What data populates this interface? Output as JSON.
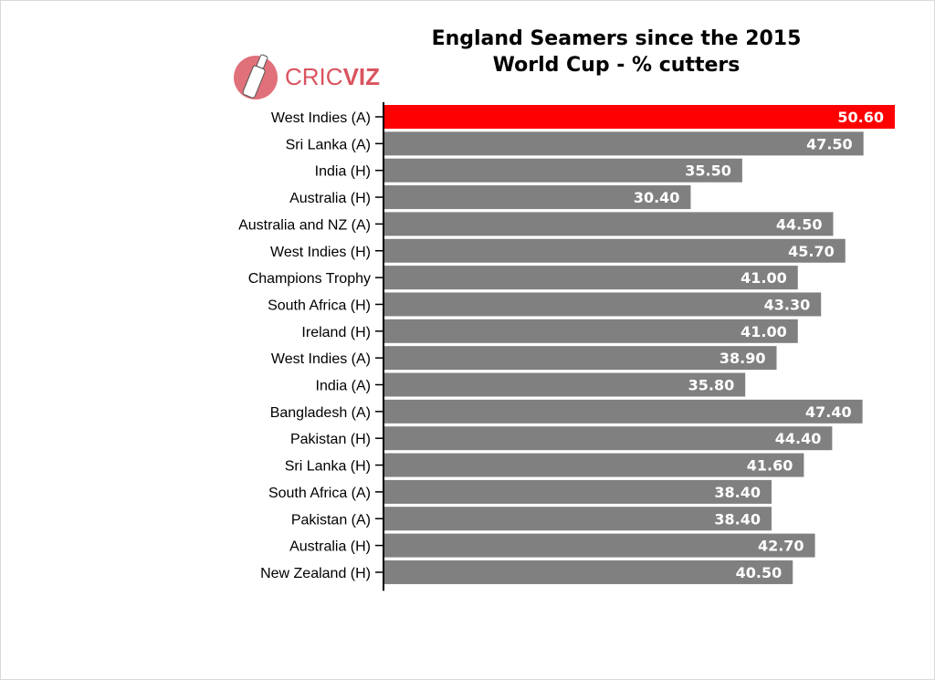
{
  "chart_data": {
    "type": "bar",
    "orientation": "horizontal",
    "title_line1": "England Seamers since the 2015",
    "title_line2": "World Cup - % cutters",
    "categories": [
      "West Indies (A)",
      "Sri Lanka (A)",
      "India (H)",
      "Australia (H)",
      "Australia and NZ (A)",
      "West Indies (H)",
      "Champions Trophy",
      "South Africa (H)",
      "Ireland (H)",
      "West Indies (A)",
      "India (A)",
      "Bangladesh (A)",
      "Pakistan (H)",
      "Sri Lanka (H)",
      "South Africa (A)",
      "Pakistan (A)",
      "Australia (H)",
      "New Zealand (H)"
    ],
    "values": [
      50.6,
      47.5,
      35.5,
      30.4,
      44.5,
      45.7,
      41.0,
      43.3,
      41.0,
      38.9,
      35.8,
      47.4,
      44.4,
      41.6,
      38.4,
      38.4,
      42.7,
      40.5
    ],
    "value_labels": [
      "50.60",
      "47.50",
      "35.50",
      "30.40",
      "44.50",
      "45.70",
      "41.00",
      "43.30",
      "41.00",
      "38.90",
      "35.80",
      "47.40",
      "44.40",
      "41.60",
      "38.40",
      "38.40",
      "42.70",
      "40.50"
    ],
    "highlight_index": 0,
    "xlim": [
      0,
      50.6
    ],
    "grid": false,
    "colors": {
      "bar": "#808080",
      "highlight": "#ff0000",
      "value_label": "#ffffff",
      "axis": "#000000"
    }
  },
  "logo": {
    "part1": "CRIC",
    "part2": "VIZ",
    "color": "#d9545f"
  }
}
